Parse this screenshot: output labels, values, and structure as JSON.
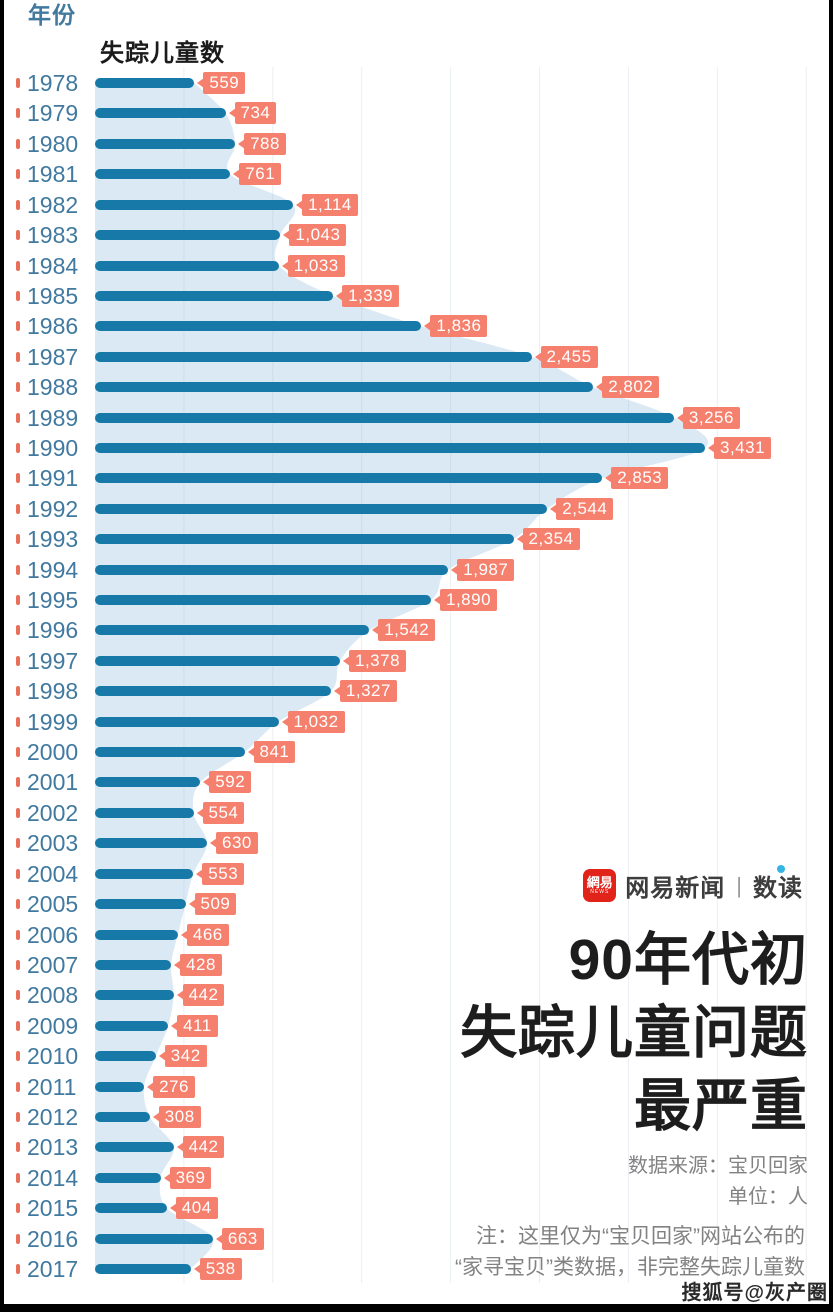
{
  "header": {
    "year_col_label": "年份",
    "value_col_label": "失踪儿童数"
  },
  "chart_data": {
    "type": "bar",
    "orientation": "horizontal",
    "title": "90年代初失踪儿童问题最严重",
    "ylabel": "年份",
    "xlabel": "失踪儿童数",
    "unit": "人",
    "source": "宝贝回家",
    "x_axis": {
      "min": 0,
      "max_data_value": 3431,
      "gridline_interval": 500,
      "gridline_max": 4000,
      "gridlines_visible": true,
      "tick_labels_visible": false
    },
    "categories": [
      "1978",
      "1979",
      "1980",
      "1981",
      "1982",
      "1983",
      "1984",
      "1985",
      "1986",
      "1987",
      "1988",
      "1989",
      "1990",
      "1991",
      "1992",
      "1993",
      "1994",
      "1995",
      "1996",
      "1997",
      "1998",
      "1999",
      "2000",
      "2001",
      "2002",
      "2003",
      "2004",
      "2005",
      "2006",
      "2007",
      "2008",
      "2009",
      "2010",
      "2011",
      "2012",
      "2013",
      "2014",
      "2015",
      "2016",
      "2017"
    ],
    "values": [
      559,
      734,
      788,
      761,
      1114,
      1043,
      1033,
      1339,
      1836,
      2455,
      2802,
      3256,
      3431,
      2853,
      2544,
      2354,
      1987,
      1890,
      1542,
      1378,
      1327,
      1032,
      841,
      592,
      554,
      630,
      553,
      509,
      466,
      428,
      442,
      411,
      342,
      276,
      308,
      442,
      369,
      404,
      663,
      538
    ],
    "value_labels": [
      "559",
      "734",
      "788",
      "761",
      "1,114",
      "1,043",
      "1,033",
      "1,339",
      "1,836",
      "2,455",
      "2,802",
      "3,256",
      "3,431",
      "2,853",
      "2,544",
      "2,354",
      "1,987",
      "1,890",
      "1,542",
      "1,378",
      "1,327",
      "1,032",
      "841",
      "592",
      "554",
      "630",
      "553",
      "509",
      "466",
      "428",
      "442",
      "411",
      "342",
      "276",
      "308",
      "442",
      "369",
      "404",
      "663",
      "538"
    ],
    "background_area": "smoothed silhouette following bar ends"
  },
  "brand": {
    "badge_cn": "網易",
    "badge_en": "NEWS",
    "name": "网易新闻",
    "separator": "|",
    "column": "数读"
  },
  "title": {
    "lines": [
      "90年代初",
      "失踪儿童问题",
      "最严重"
    ]
  },
  "source_block": {
    "source_line": "数据来源：宝贝回家",
    "unit_line": "单位：人",
    "note_line1": "注：这里仅为“宝贝回家”网站公布的",
    "note_line2": "“家寻宝贝”类数据，非完整失踪儿童数"
  },
  "watermark": "搜狐号@灰产圈",
  "colors": {
    "bar": "#1779a8",
    "area": "#dbe9f4",
    "label_bg": "#f5806e",
    "tick": "#e8705a",
    "year_text": "#41799f",
    "grid": "#8aa4bc",
    "badge_red": "#e2231a",
    "dot_blue": "#35b5e5"
  }
}
